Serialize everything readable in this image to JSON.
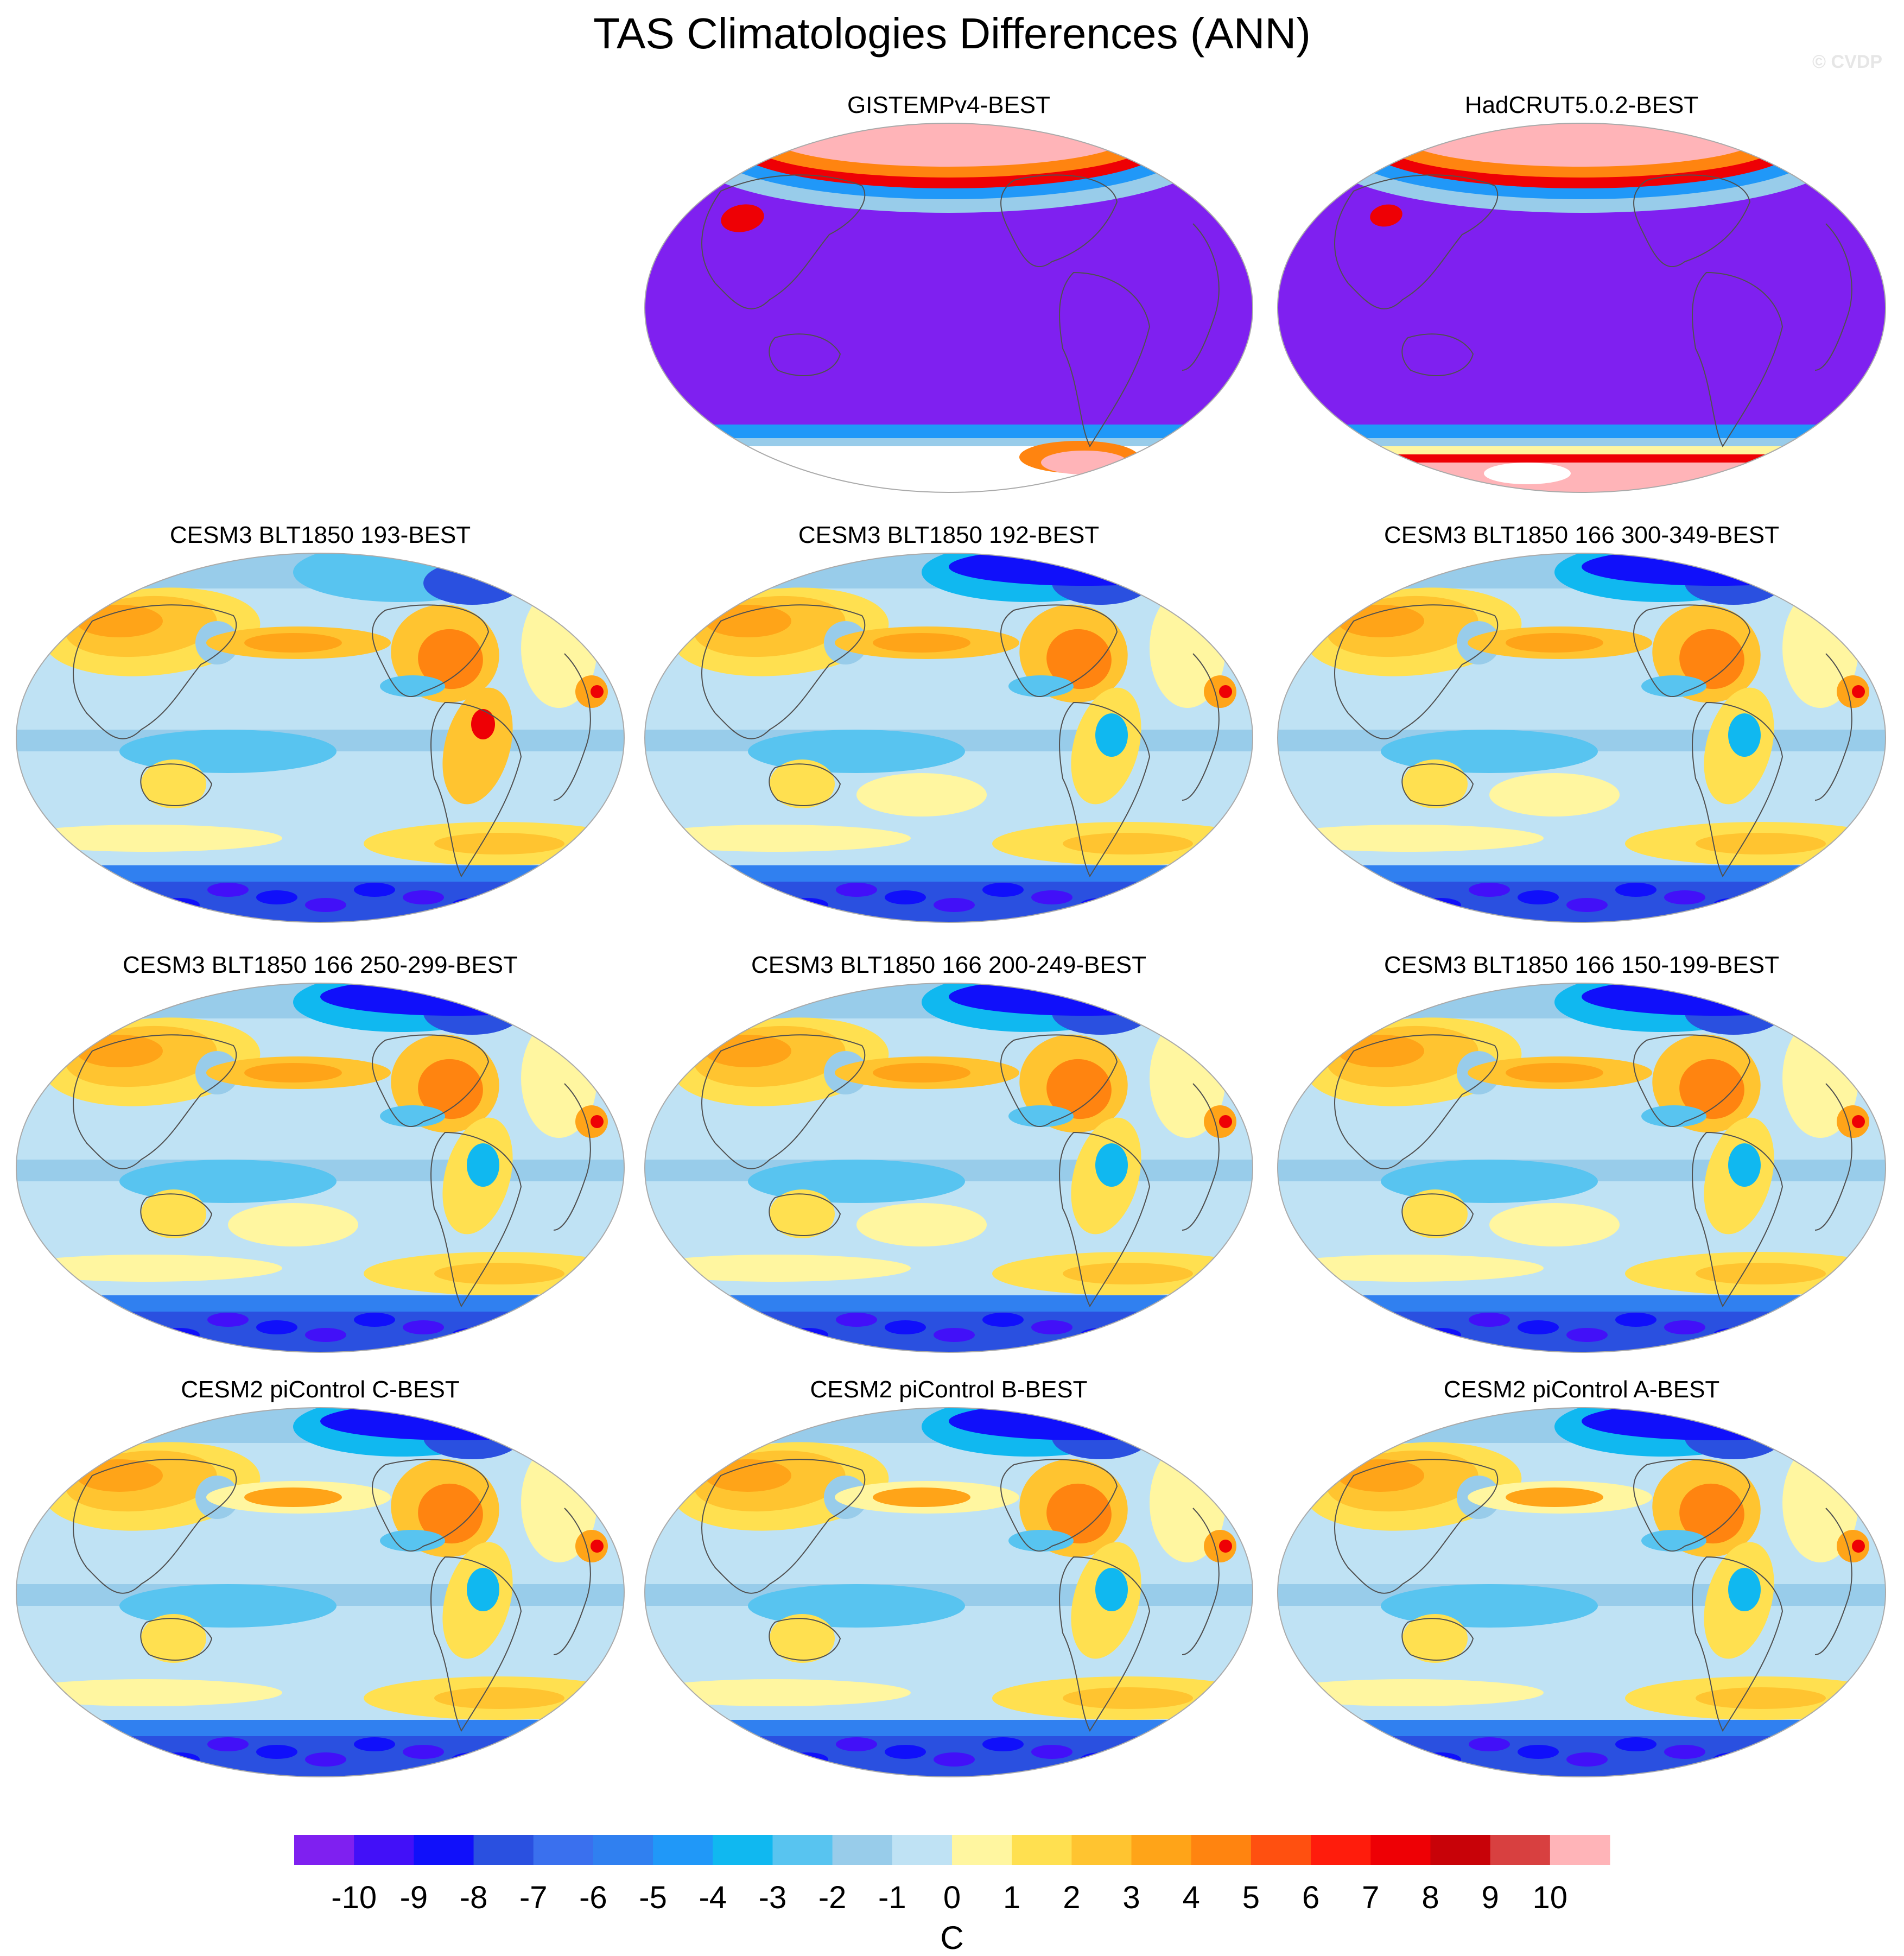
{
  "title": "TAS Climatologies Differences (ANN)",
  "watermark": "© CVDP",
  "panels": [
    {
      "title": "GISTEMPv4-BEST",
      "kind": "obs",
      "variant": "gistemp"
    },
    {
      "title": "HadCRUT5.0.2-BEST",
      "kind": "obs",
      "variant": "hadcrut"
    },
    {
      "title": "CESM3 BLT1850 193-BEST",
      "kind": "model",
      "variant": "A"
    },
    {
      "title": "CESM3 BLT1850 192-BEST",
      "kind": "model",
      "variant": "B"
    },
    {
      "title": "CESM3 BLT1850 166 300-349-BEST",
      "kind": "model",
      "variant": "C"
    },
    {
      "title": "CESM3 BLT1850 166 250-299-BEST",
      "kind": "model",
      "variant": "C"
    },
    {
      "title": "CESM3 BLT1850 166 200-249-BEST",
      "kind": "model",
      "variant": "C"
    },
    {
      "title": "CESM3 BLT1850 166 150-199-BEST",
      "kind": "model",
      "variant": "C"
    },
    {
      "title": "CESM2 piControl C-BEST",
      "kind": "model",
      "variant": "D"
    },
    {
      "title": "CESM2 piControl B-BEST",
      "kind": "model",
      "variant": "D"
    },
    {
      "title": "CESM2 piControl A-BEST",
      "kind": "model",
      "variant": "D"
    }
  ],
  "colorbar": {
    "unit": "C",
    "tick_labels": [
      "-10",
      "-9",
      "-8",
      "-7",
      "-6",
      "-5",
      "-4",
      "-3",
      "-2",
      "-1",
      "0",
      "1",
      "2",
      "3",
      "4",
      "5",
      "6",
      "7",
      "8",
      "9",
      "10"
    ],
    "colors": [
      "#7f20f0",
      "#4210f8",
      "#1010fa",
      "#2a50e0",
      "#3a70ee",
      "#3080f0",
      "#2098f8",
      "#10b8f0",
      "#58c4f0",
      "#98ccea",
      "#bfe2f4",
      "#fff6a0",
      "#ffe050",
      "#ffc430",
      "#ffa418",
      "#ff8410",
      "#ff5010",
      "#ff1c0c",
      "#ee0005",
      "#c80208",
      "#d84040",
      "#ffb4b8"
    ]
  },
  "chart_data": {
    "type": "heatmap",
    "title": "TAS Climatologies Differences (ANN)",
    "projection": "Robinson-like global map, centered on Pacific",
    "color_scale": {
      "min": -10,
      "max": 10,
      "step": 1,
      "unit": "C"
    },
    "grid": false,
    "legend": "bottom-center"
  }
}
